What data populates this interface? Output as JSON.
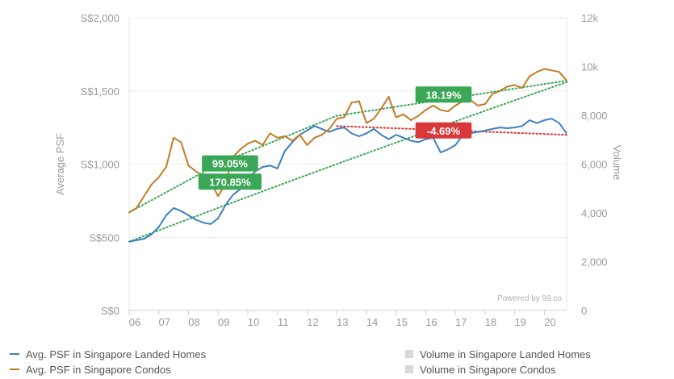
{
  "chart_data": {
    "type": "line",
    "y_left": {
      "label": "Average PSF",
      "ticks": [
        "S$0",
        "S$500",
        "S$1,000",
        "S$1,500",
        "S$2,000"
      ],
      "range": [
        0,
        2000
      ]
    },
    "y_right": {
      "label": "Volume",
      "ticks": [
        "0",
        "2,000",
        "4,000",
        "6,000",
        "8,000",
        "10k",
        "12k"
      ],
      "range": [
        0,
        12000
      ]
    },
    "x_ticks": [
      "06",
      "07",
      "08",
      "09",
      "10",
      "11",
      "12",
      "13",
      "14",
      "15",
      "16",
      "17",
      "18",
      "19",
      "20"
    ],
    "x_range": [
      2006,
      2020.75
    ],
    "series": [
      {
        "name": "Avg. PSF in Singapore Landed Homes",
        "color": "#3c7fc1",
        "x": [
          2006,
          2006.25,
          2006.5,
          2006.75,
          2007,
          2007.25,
          2007.5,
          2007.75,
          2008,
          2008.25,
          2008.5,
          2008.75,
          2009,
          2009.25,
          2009.5,
          2009.75,
          2010,
          2010.25,
          2010.5,
          2010.75,
          2011,
          2011.25,
          2011.5,
          2011.75,
          2012,
          2012.25,
          2012.5,
          2012.75,
          2013,
          2013.25,
          2013.5,
          2013.75,
          2014,
          2014.25,
          2014.5,
          2014.75,
          2015,
          2015.25,
          2015.5,
          2015.75,
          2016,
          2016.25,
          2016.5,
          2016.75,
          2017,
          2017.25,
          2017.5,
          2017.75,
          2018,
          2018.25,
          2018.5,
          2018.75,
          2019,
          2019.25,
          2019.5,
          2019.75,
          2020,
          2020.25,
          2020.5,
          2020.75
        ],
        "values": [
          470,
          480,
          490,
          520,
          570,
          650,
          700,
          680,
          650,
          620,
          600,
          590,
          630,
          720,
          790,
          830,
          900,
          950,
          980,
          990,
          970,
          1090,
          1150,
          1200,
          1230,
          1260,
          1240,
          1220,
          1240,
          1250,
          1210,
          1190,
          1210,
          1240,
          1200,
          1170,
          1200,
          1180,
          1160,
          1150,
          1170,
          1180,
          1080,
          1100,
          1130,
          1200,
          1210,
          1220,
          1230,
          1240,
          1250,
          1245,
          1250,
          1260,
          1300,
          1280,
          1300,
          1310,
          1280,
          1210
        ]
      },
      {
        "name": "Avg. PSF in Singapore Condos",
        "color": "#c37a25",
        "x": [
          2006,
          2006.25,
          2006.5,
          2006.75,
          2007,
          2007.25,
          2007.5,
          2007.75,
          2008,
          2008.25,
          2008.5,
          2008.75,
          2009,
          2009.25,
          2009.5,
          2009.75,
          2010,
          2010.25,
          2010.5,
          2010.75,
          2011,
          2011.25,
          2011.5,
          2011.75,
          2012,
          2012.25,
          2012.5,
          2012.75,
          2013,
          2013.25,
          2013.5,
          2013.75,
          2014,
          2014.25,
          2014.5,
          2014.75,
          2015,
          2015.25,
          2015.5,
          2015.75,
          2016,
          2016.25,
          2016.5,
          2016.75,
          2017,
          2017.25,
          2017.5,
          2017.75,
          2018,
          2018.25,
          2018.5,
          2018.75,
          2019,
          2019.25,
          2019.5,
          2019.75,
          2020,
          2020.25,
          2020.5,
          2020.75
        ],
        "values": [
          670,
          700,
          780,
          860,
          910,
          980,
          1180,
          1150,
          990,
          950,
          920,
          880,
          780,
          870,
          1050,
          1100,
          1140,
          1160,
          1130,
          1210,
          1180,
          1190,
          1160,
          1200,
          1130,
          1180,
          1200,
          1240,
          1310,
          1320,
          1420,
          1430,
          1280,
          1310,
          1380,
          1460,
          1320,
          1340,
          1300,
          1330,
          1370,
          1400,
          1370,
          1360,
          1400,
          1430,
          1440,
          1400,
          1410,
          1480,
          1500,
          1530,
          1540,
          1520,
          1600,
          1630,
          1650,
          1640,
          1630,
          1570
        ]
      }
    ],
    "trendlines": [
      {
        "color": "#3aa757",
        "x": [
          2006,
          2013,
          2020.75
        ],
        "values": [
          470,
          1000,
          1560
        ]
      },
      {
        "color": "#3aa757",
        "x": [
          2006,
          2009,
          2013,
          2020.75
        ],
        "values": [
          670,
          1000,
          1330,
          1570
        ]
      },
      {
        "color": "#d9383a",
        "x": [
          2013,
          2020.75
        ],
        "values": [
          1260,
          1200
        ]
      }
    ],
    "annotations": [
      {
        "text": "99.05%",
        "color": "#3aa757",
        "x": 2009.4,
        "y": 1005
      },
      {
        "text": "170.85%",
        "color": "#3aa757",
        "x": 2009.4,
        "y": 880
      },
      {
        "text": "18.19%",
        "color": "#3aa757",
        "x": 2016.6,
        "y": 1475
      },
      {
        "text": "-4.69%",
        "color": "#d9383a",
        "x": 2016.6,
        "y": 1230
      }
    ],
    "watermark": "Powered by 99.co",
    "legend": [
      {
        "label": "Avg. PSF in Singapore Landed Homes",
        "type": "line",
        "color": "#3c7fc1"
      },
      {
        "label": "Avg. PSF in Singapore Condos",
        "type": "line",
        "color": "#c37a25"
      },
      {
        "label": "Volume in Singapore Landed Homes",
        "type": "box"
      },
      {
        "label": "Volume in Singapore Condos",
        "type": "box"
      }
    ],
    "grid": true
  }
}
